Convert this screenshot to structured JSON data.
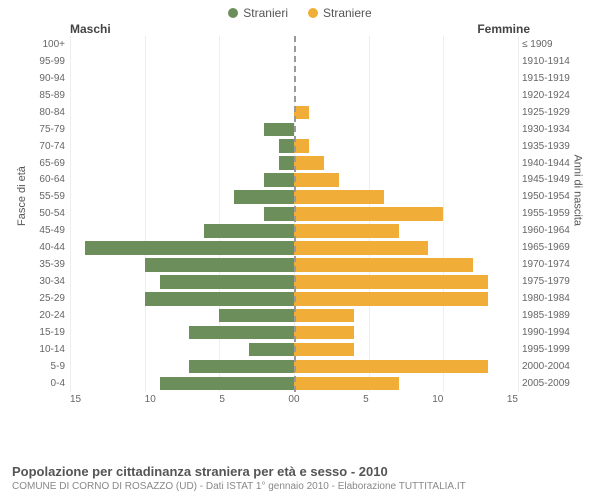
{
  "legend": {
    "male": {
      "label": "Stranieri",
      "color": "#6b8e5a"
    },
    "female": {
      "label": "Straniere",
      "color": "#f0ad38"
    }
  },
  "header": {
    "male": "Maschi",
    "female": "Femmine"
  },
  "axes": {
    "y_left_label": "Fasce di età",
    "y_right_label": "Anni di nascita",
    "xmax": 15,
    "xticks": [
      0,
      5,
      10,
      15
    ]
  },
  "chart": {
    "type": "population-pyramid",
    "bar_male_color": "#6b8e5a",
    "bar_female_color": "#f0ad38",
    "grid_color": "#eeeeee",
    "axis_color": "#999999",
    "rows": [
      {
        "age": "100+",
        "year": "≤ 1909",
        "m": 0,
        "f": 0
      },
      {
        "age": "95-99",
        "year": "1910-1914",
        "m": 0,
        "f": 0
      },
      {
        "age": "90-94",
        "year": "1915-1919",
        "m": 0,
        "f": 0
      },
      {
        "age": "85-89",
        "year": "1920-1924",
        "m": 0,
        "f": 0
      },
      {
        "age": "80-84",
        "year": "1925-1929",
        "m": 0,
        "f": 1
      },
      {
        "age": "75-79",
        "year": "1930-1934",
        "m": 2,
        "f": 0
      },
      {
        "age": "70-74",
        "year": "1935-1939",
        "m": 1,
        "f": 1
      },
      {
        "age": "65-69",
        "year": "1940-1944",
        "m": 1,
        "f": 2
      },
      {
        "age": "60-64",
        "year": "1945-1949",
        "m": 2,
        "f": 3
      },
      {
        "age": "55-59",
        "year": "1950-1954",
        "m": 4,
        "f": 6
      },
      {
        "age": "50-54",
        "year": "1955-1959",
        "m": 2,
        "f": 10
      },
      {
        "age": "45-49",
        "year": "1960-1964",
        "m": 6,
        "f": 7
      },
      {
        "age": "40-44",
        "year": "1965-1969",
        "m": 14,
        "f": 9
      },
      {
        "age": "35-39",
        "year": "1970-1974",
        "m": 10,
        "f": 12
      },
      {
        "age": "30-34",
        "year": "1975-1979",
        "m": 9,
        "f": 13
      },
      {
        "age": "25-29",
        "year": "1980-1984",
        "m": 10,
        "f": 13
      },
      {
        "age": "20-24",
        "year": "1985-1989",
        "m": 5,
        "f": 4
      },
      {
        "age": "15-19",
        "year": "1990-1994",
        "m": 7,
        "f": 4
      },
      {
        "age": "10-14",
        "year": "1995-1999",
        "m": 3,
        "f": 4
      },
      {
        "age": "5-9",
        "year": "2000-2004",
        "m": 7,
        "f": 13
      },
      {
        "age": "0-4",
        "year": "2005-2009",
        "m": 9,
        "f": 7
      }
    ]
  },
  "footer": {
    "title": "Popolazione per cittadinanza straniera per età e sesso - 2010",
    "subtitle": "COMUNE DI CORNO DI ROSAZZO (UD) - Dati ISTAT 1° gennaio 2010 - Elaborazione TUTTITALIA.IT"
  }
}
